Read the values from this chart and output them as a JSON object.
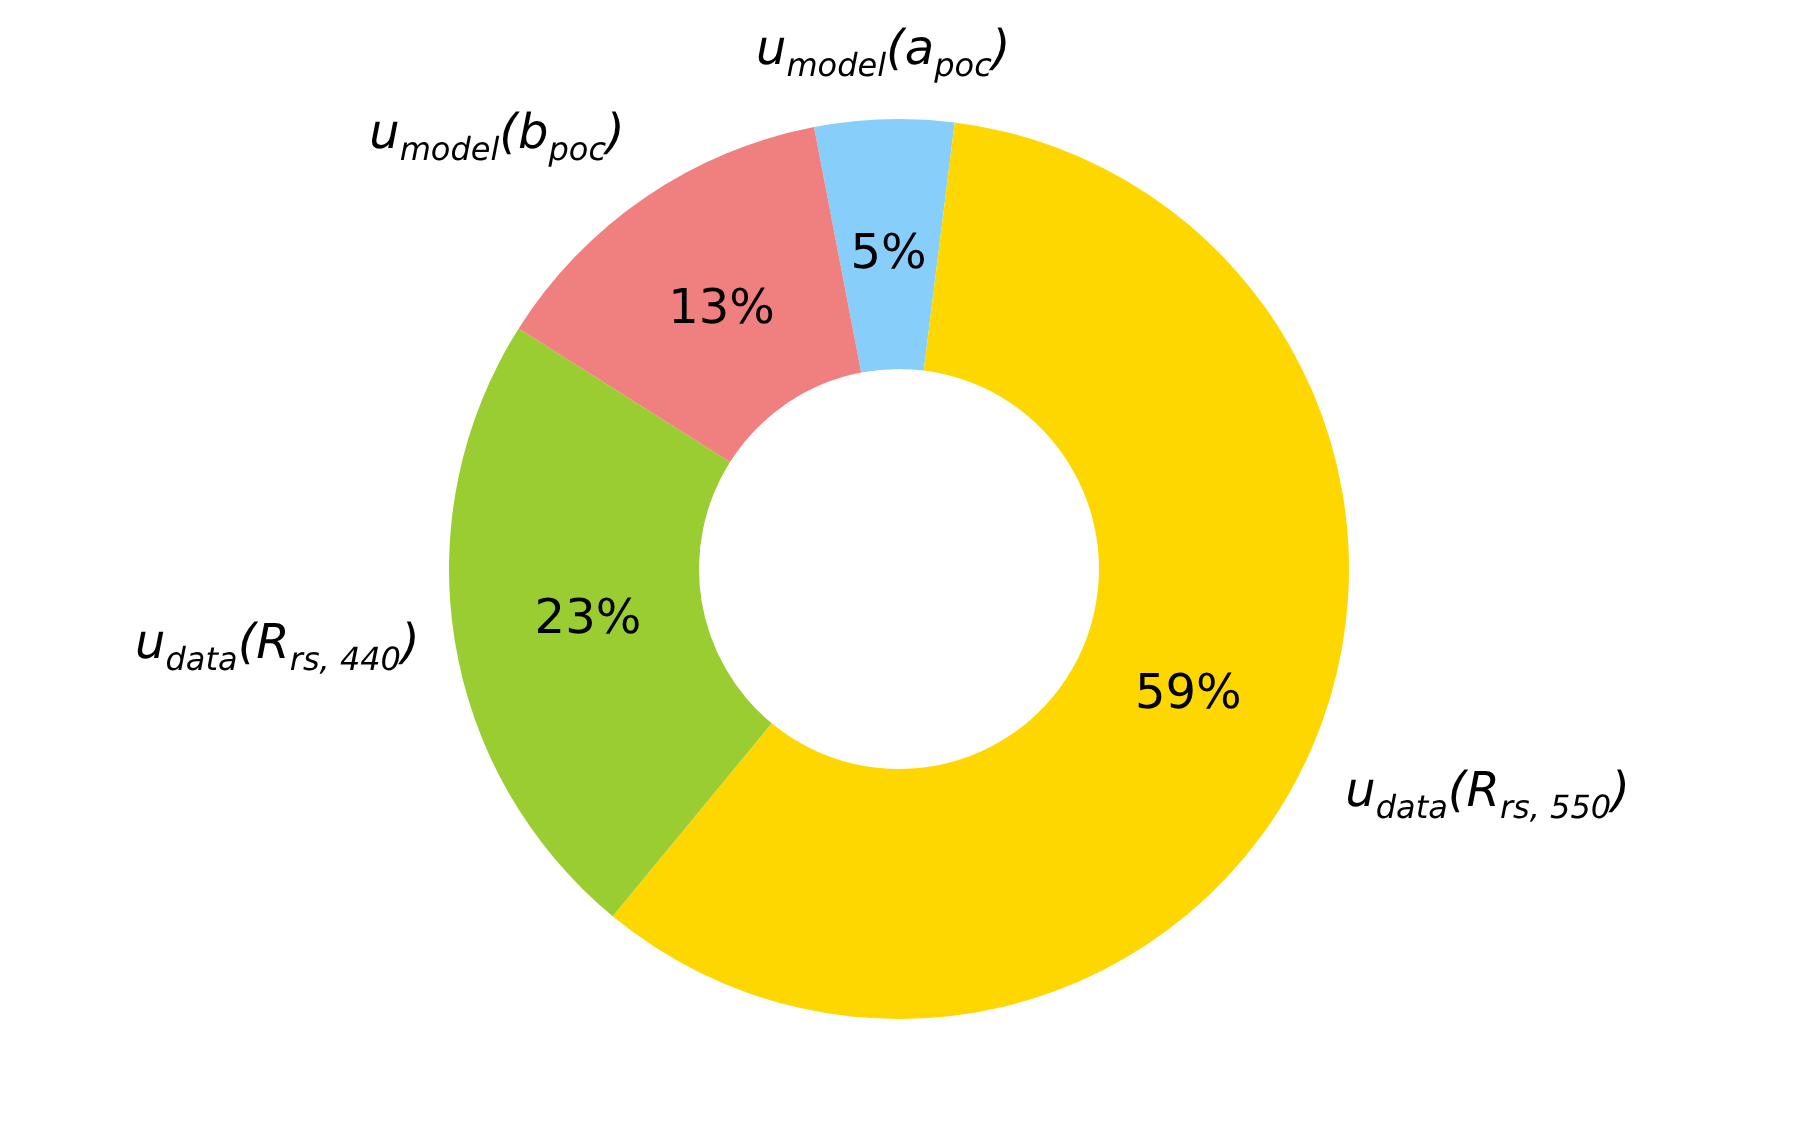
{
  "chart_data": {
    "type": "donut",
    "categories": [
      "u$_{model}$(a$_{poc}$)",
      "u$_{data}$(R$_{rs, 550}$)",
      "u$_{data}$(R$_{rs, 440}$)",
      "u$_{model}$(b$_{poc}$)"
    ],
    "values": [
      5,
      59,
      23,
      13
    ],
    "colors": [
      "#87cefa",
      "#ffd700",
      "#9acd32",
      "#f08080"
    ],
    "value_labels": [
      "5%",
      "59%",
      "23%",
      "13%"
    ]
  }
}
